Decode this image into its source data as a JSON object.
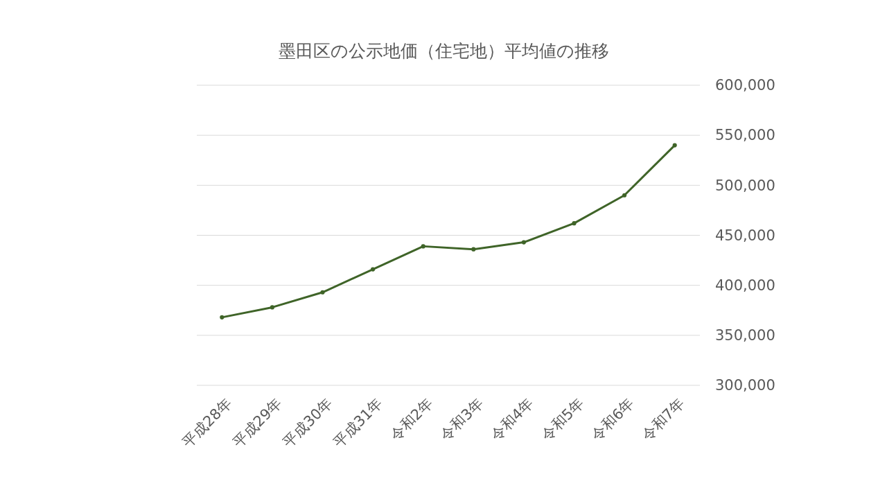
{
  "chart_data": {
    "type": "line",
    "title": "墨田区の公示地価（住宅地）平均値の推移",
    "categories": [
      "平成28年",
      "平成29年",
      "平成30年",
      "平成31年",
      "令和2年",
      "令和3年",
      "令和4年",
      "令和5年",
      "令和6年",
      "令和7年"
    ],
    "series": [
      {
        "color": "#3f6428",
        "values": [
          368000,
          378000,
          393000,
          416000,
          439000,
          436000,
          443000,
          462000,
          490000,
          540000
        ]
      }
    ],
    "ylim": [
      300000,
      600000
    ],
    "yticks": [
      {
        "value": 300000,
        "label": "300,000"
      },
      {
        "value": 350000,
        "label": "350,000"
      },
      {
        "value": 400000,
        "label": "400,000"
      },
      {
        "value": 450000,
        "label": "450,000"
      },
      {
        "value": 500000,
        "label": "500,000"
      },
      {
        "value": 550000,
        "label": "550,000"
      },
      {
        "value": 600000,
        "label": "600,000"
      }
    ],
    "grid": "y",
    "marker": "circle",
    "line_style": "solid"
  }
}
